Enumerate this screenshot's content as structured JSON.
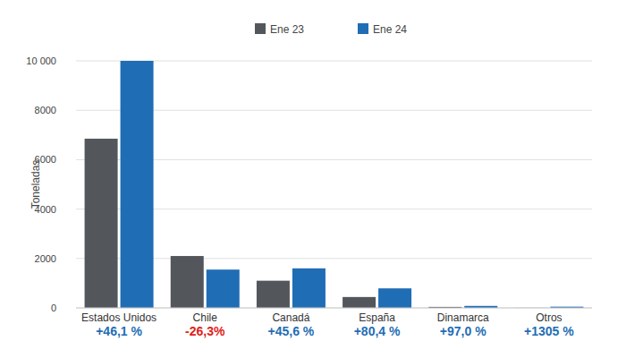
{
  "chart_data": {
    "type": "bar",
    "y_label": "Toneladas",
    "categories": [
      "Estados Unidos",
      "Chile",
      "Canadá",
      "España",
      "Dinamarca",
      "Otros"
    ],
    "series": [
      {
        "name": "Ene 23",
        "color": "#53575b",
        "values": [
          6850,
          2100,
          1100,
          440,
          40,
          3.5
        ]
      },
      {
        "name": "Ene 24",
        "color": "#1f6db5",
        "values": [
          10000,
          1550,
          1600,
          790,
          80,
          49
        ]
      }
    ],
    "annotations": [
      "+46,1 %",
      "-26,3%",
      "+45,6 %",
      "+80,4 %",
      "+97,0 %",
      "+1305 %"
    ],
    "ylim": [
      0,
      10000
    ],
    "yticks": [
      0,
      2000,
      4000,
      6000,
      8000,
      {
        "value": 10000,
        "label": "10 000"
      }
    ],
    "grid": true,
    "legend": "top"
  }
}
